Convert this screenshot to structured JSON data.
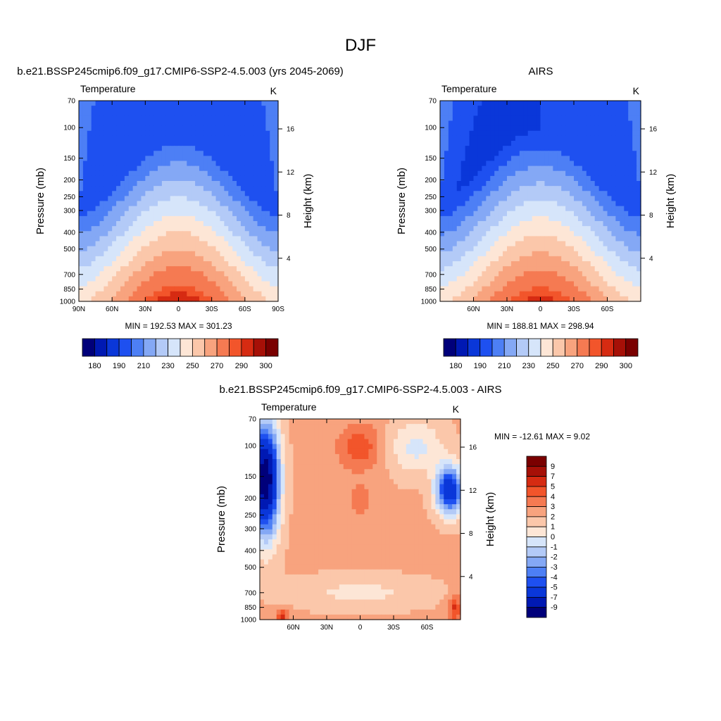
{
  "page_title": "DJF",
  "chart_data": [
    {
      "type": "heatmap",
      "id": "model",
      "title": "b.e21.BSSP245cmip6.f09_g17.CMIP6-SSP2-4.5.003 (yrs 2045-2069)",
      "left_label": "Temperature",
      "right_label": "K",
      "ylabel": "Pressure (mb)",
      "y2label": "Height (km)",
      "stats": "MIN = 192.53  MAX = 301.23",
      "x_ticks": [
        "90N",
        "60N",
        "30N",
        "0",
        "30S",
        "60S",
        "90S"
      ],
      "x_range": [
        -90,
        90
      ],
      "y_ticks": [
        "70",
        "100",
        "150",
        "200",
        "250",
        "300",
        "400",
        "500",
        "700",
        "850",
        "1000"
      ],
      "y_range_mb": [
        70,
        1000
      ],
      "y2_ticks": [
        "16",
        "12",
        "8",
        "4"
      ],
      "colorbar_labels": [
        "180",
        "190",
        "210",
        "230",
        "250",
        "270",
        "290",
        "300"
      ],
      "field": {
        "center": 300,
        "pole_sfc": 259,
        "trop_min": 204,
        "high_lat": 222
      }
    },
    {
      "type": "heatmap",
      "id": "obs",
      "title": "AIRS",
      "left_label": "Temperature",
      "right_label": "K",
      "ylabel": "Pressure (mb)",
      "y2label": "Height (km)",
      "stats": "MIN = 188.81  MAX = 298.94",
      "x_ticks": [
        "60N",
        "30N",
        "0",
        "30S",
        "60S"
      ],
      "x_range": [
        -90,
        90
      ],
      "y_ticks": [
        "70",
        "100",
        "150",
        "200",
        "250",
        "300",
        "400",
        "500",
        "700",
        "850",
        "1000"
      ],
      "y_range_mb": [
        70,
        1000
      ],
      "y2_ticks": [
        "16",
        "12",
        "8",
        "4"
      ],
      "colorbar_labels": [
        "180",
        "190",
        "210",
        "230",
        "250",
        "270",
        "290",
        "300"
      ],
      "field": {
        "center": 298,
        "pole_sfc": 258,
        "trop_min": 198,
        "high_lat": 221
      }
    },
    {
      "type": "heatmap",
      "id": "diff",
      "title": "b.e21.BSSP245cmip6.f09_g17.CMIP6-SSP2-4.5.003 - AIRS",
      "left_label": "Temperature",
      "right_label": "K",
      "ylabel": "Pressure (mb)",
      "y2label": "Height (km)",
      "stats": "MIN = -12.61  MAX =   9.02",
      "x_ticks": [
        "60N",
        "30N",
        "0",
        "30S",
        "60S"
      ],
      "x_range": [
        -90,
        90
      ],
      "y_ticks": [
        "70",
        "100",
        "150",
        "200",
        "250",
        "300",
        "400",
        "500",
        "700",
        "850",
        "1000"
      ],
      "y_range_mb": [
        70,
        1000
      ],
      "y2_ticks": [
        "16",
        "12",
        "8",
        "4"
      ],
      "colorbar_labels": [
        "9",
        "7",
        "5",
        "4",
        "3",
        "2",
        "1",
        "0",
        "-1",
        "-2",
        "-3",
        "-4",
        "-5",
        "-7",
        "-9"
      ]
    }
  ],
  "colormap_abs": [
    "#00007a",
    "#0019b3",
    "#0a37d9",
    "#1e50f0",
    "#4d7ff5",
    "#84a8f5",
    "#b3caf7",
    "#d6e5fa",
    "#fde6d6",
    "#fbc7aa",
    "#f8a37e",
    "#f57a52",
    "#f2552b",
    "#d62b12",
    "#a61007",
    "#7a0000"
  ],
  "colormap_diff": [
    "#00007a",
    "#0019b3",
    "#0a37d9",
    "#1e50f0",
    "#4d7ff5",
    "#84a8f5",
    "#b3caf7",
    "#d6e5fa",
    "#fde6d6",
    "#fbc7aa",
    "#f8a37e",
    "#f57a52",
    "#f2552b",
    "#d62b12",
    "#a61007",
    "#7a0000"
  ]
}
